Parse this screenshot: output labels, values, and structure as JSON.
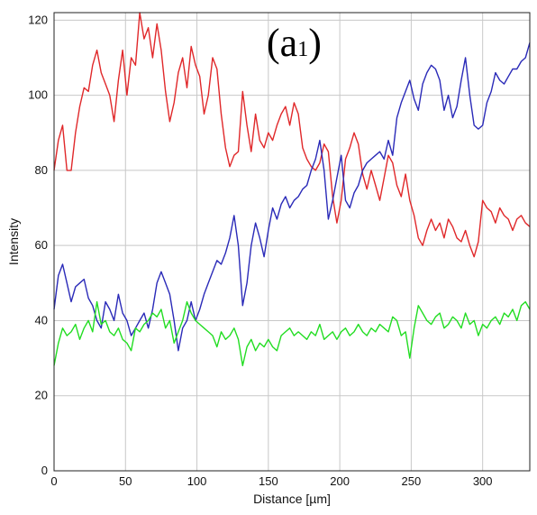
{
  "panel_label": {
    "main": "(a",
    "sub": "1",
    "close": ")"
  },
  "colors": {
    "red": "#e0282a",
    "blue": "#2a2ab8",
    "green": "#22dd22",
    "grid": "#c8c8c8"
  },
  "chart_data": {
    "type": "line",
    "title": "",
    "xlabel": "Distance [µm]",
    "ylabel": "Intensity",
    "xlim": [
      0,
      333
    ],
    "ylim": [
      0,
      122
    ],
    "grid": true,
    "x_ticks": [
      0,
      50,
      100,
      150,
      200,
      250,
      300
    ],
    "y_ticks": [
      0,
      20,
      40,
      60,
      80,
      100,
      120
    ],
    "series": [
      {
        "color": "#e0282a",
        "x": [
          0,
          3,
          6,
          9,
          12,
          15,
          18,
          21,
          24,
          27,
          30,
          33,
          36,
          39,
          42,
          45,
          48,
          51,
          54,
          57,
          60,
          63,
          66,
          69,
          72,
          75,
          78,
          81,
          84,
          87,
          90,
          93,
          96,
          99,
          102,
          105,
          108,
          111,
          114,
          117,
          120,
          123,
          126,
          129,
          132,
          135,
          138,
          141,
          144,
          147,
          150,
          153,
          156,
          159,
          162,
          165,
          168,
          171,
          174,
          177,
          180,
          183,
          186,
          189,
          192,
          195,
          198,
          201,
          204,
          207,
          210,
          213,
          216,
          219,
          222,
          225,
          228,
          231,
          234,
          237,
          240,
          243,
          246,
          249,
          252,
          255,
          258,
          261,
          264,
          267,
          270,
          273,
          276,
          279,
          282,
          285,
          288,
          291,
          294,
          297,
          300,
          303,
          306,
          309,
          312,
          315,
          318,
          321,
          324,
          327,
          330,
          333
        ],
        "y": [
          80,
          88,
          92,
          80,
          80,
          90,
          97,
          102,
          101,
          108,
          112,
          106,
          103,
          100,
          93,
          104,
          112,
          100,
          110,
          108,
          122,
          115,
          118,
          110,
          119,
          112,
          101,
          93,
          98,
          106,
          110,
          102,
          113,
          108,
          105,
          95,
          100,
          110,
          107,
          95,
          86,
          81,
          84,
          85,
          101,
          92,
          85,
          95,
          88,
          86,
          90,
          88,
          92,
          95,
          97,
          92,
          98,
          95,
          86,
          83,
          81,
          80,
          82,
          87,
          85,
          73,
          66,
          72,
          83,
          86,
          90,
          87,
          79,
          75,
          80,
          76,
          72,
          78,
          84,
          82,
          76,
          73,
          79,
          72,
          68,
          62,
          60,
          64,
          67,
          64,
          66,
          62,
          67,
          65,
          62,
          61,
          64,
          60,
          57,
          61,
          72,
          70,
          69,
          66,
          70,
          68,
          67,
          64,
          67,
          68,
          66,
          65
        ]
      },
      {
        "color": "#2a2ab8",
        "x": [
          0,
          3,
          6,
          9,
          12,
          15,
          18,
          21,
          24,
          27,
          30,
          33,
          36,
          39,
          42,
          45,
          48,
          51,
          54,
          57,
          60,
          63,
          66,
          69,
          72,
          75,
          78,
          81,
          84,
          87,
          90,
          93,
          96,
          99,
          102,
          105,
          108,
          111,
          114,
          117,
          120,
          123,
          126,
          129,
          132,
          135,
          138,
          141,
          144,
          147,
          150,
          153,
          156,
          159,
          162,
          165,
          168,
          171,
          174,
          177,
          180,
          183,
          186,
          189,
          192,
          195,
          198,
          201,
          204,
          207,
          210,
          213,
          216,
          219,
          222,
          225,
          228,
          231,
          234,
          237,
          240,
          243,
          246,
          249,
          252,
          255,
          258,
          261,
          264,
          267,
          270,
          273,
          276,
          279,
          282,
          285,
          288,
          291,
          294,
          297,
          300,
          303,
          306,
          309,
          312,
          315,
          318,
          321,
          324,
          327,
          330,
          333
        ],
        "y": [
          43,
          52,
          55,
          50,
          45,
          49,
          50,
          51,
          46,
          44,
          40,
          38,
          45,
          43,
          40,
          47,
          42,
          40,
          36,
          38,
          40,
          42,
          38,
          43,
          50,
          53,
          50,
          47,
          40,
          32,
          38,
          40,
          45,
          40,
          43,
          47,
          50,
          53,
          56,
          55,
          58,
          62,
          68,
          60,
          44,
          50,
          60,
          66,
          62,
          57,
          64,
          70,
          67,
          71,
          73,
          70,
          72,
          73,
          75,
          76,
          80,
          83,
          88,
          80,
          67,
          72,
          78,
          84,
          72,
          70,
          74,
          76,
          80,
          82,
          83,
          84,
          85,
          83,
          88,
          84,
          94,
          98,
          101,
          104,
          99,
          96,
          103,
          106,
          108,
          107,
          104,
          96,
          100,
          94,
          97,
          104,
          110,
          100,
          92,
          91,
          92,
          98,
          101,
          106,
          104,
          103,
          105,
          107,
          107,
          109,
          110,
          114
        ]
      },
      {
        "color": "#22dd22",
        "x": [
          0,
          3,
          6,
          9,
          12,
          15,
          18,
          21,
          24,
          27,
          30,
          33,
          36,
          39,
          42,
          45,
          48,
          51,
          54,
          57,
          60,
          63,
          66,
          69,
          72,
          75,
          78,
          81,
          84,
          87,
          90,
          93,
          96,
          99,
          102,
          105,
          108,
          111,
          114,
          117,
          120,
          123,
          126,
          129,
          132,
          135,
          138,
          141,
          144,
          147,
          150,
          153,
          156,
          159,
          162,
          165,
          168,
          171,
          174,
          177,
          180,
          183,
          186,
          189,
          192,
          195,
          198,
          201,
          204,
          207,
          210,
          213,
          216,
          219,
          222,
          225,
          228,
          231,
          234,
          237,
          240,
          243,
          246,
          249,
          252,
          255,
          258,
          261,
          264,
          267,
          270,
          273,
          276,
          279,
          282,
          285,
          288,
          291,
          294,
          297,
          300,
          303,
          306,
          309,
          312,
          315,
          318,
          321,
          324,
          327,
          330,
          333
        ],
        "y": [
          28,
          34,
          38,
          36,
          37,
          39,
          35,
          38,
          40,
          37,
          45,
          39,
          40,
          37,
          36,
          38,
          35,
          34,
          32,
          38,
          37,
          39,
          40,
          42,
          41,
          43,
          38,
          40,
          34,
          37,
          40,
          45,
          42,
          40,
          39,
          38,
          37,
          36,
          33,
          37,
          35,
          36,
          38,
          35,
          28,
          33,
          35,
          32,
          34,
          33,
          35,
          33,
          32,
          36,
          37,
          38,
          36,
          37,
          36,
          35,
          37,
          36,
          39,
          35,
          36,
          37,
          35,
          37,
          38,
          36,
          37,
          39,
          37,
          36,
          38,
          37,
          39,
          38,
          37,
          41,
          40,
          36,
          37,
          30,
          38,
          44,
          42,
          40,
          39,
          41,
          42,
          38,
          39,
          41,
          40,
          38,
          42,
          39,
          40,
          36,
          39,
          38,
          40,
          41,
          39,
          42,
          41,
          43,
          40,
          44,
          45,
          43
        ]
      }
    ]
  }
}
